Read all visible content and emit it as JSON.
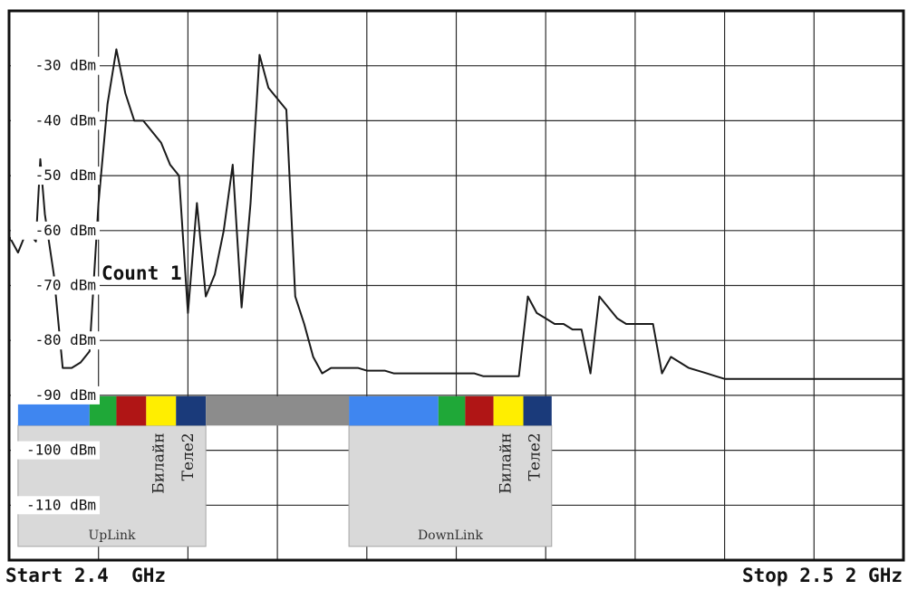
{
  "chart_data": {
    "type": "line",
    "y_tick_labels": [
      "-30 dBm",
      "-40 dBm",
      "-50 dBm",
      "-60 dBm",
      "-70 dBm",
      "-80 dBm",
      "-90 dBm",
      "-100 dBm",
      "-110 dBm"
    ],
    "y_tick_values": [
      -30,
      -40,
      -50,
      -60,
      -70,
      -80,
      -90,
      -100,
      -110
    ],
    "ylim": [
      -120,
      -20
    ],
    "xlim": [
      2.4,
      2.52
    ],
    "x_unit": "GHz",
    "start_label": "Start 2.4  GHz",
    "stop_label": "Stop 2.5 2 GHz",
    "annotation": "Count  1",
    "grid": true,
    "series": [
      {
        "color": "#1a1a1a",
        "x": [
          2.4,
          2.4012,
          2.4024,
          2.4036,
          2.4042,
          2.4048,
          2.406,
          2.4072,
          2.408,
          2.4084,
          2.4096,
          2.4108,
          2.412,
          2.4132,
          2.4144,
          2.4156,
          2.4168,
          2.418,
          2.4192,
          2.4204,
          2.4216,
          2.4228,
          2.424,
          2.4252,
          2.4264,
          2.4276,
          2.4288,
          2.43,
          2.4312,
          2.4324,
          2.4336,
          2.4348,
          2.436,
          2.4372,
          2.4384,
          2.4396,
          2.4408,
          2.442,
          2.4432,
          2.4444,
          2.4456,
          2.4468,
          2.448,
          2.4492,
          2.4504,
          2.4516,
          2.4528,
          2.454,
          2.4552,
          2.4564,
          2.4576,
          2.4588,
          2.46,
          2.4612,
          2.4624,
          2.4636,
          2.4648,
          2.466,
          2.4672,
          2.4684,
          2.4696,
          2.4708,
          2.472,
          2.4732,
          2.4744,
          2.4756,
          2.4768,
          2.478,
          2.4792,
          2.4804,
          2.4816,
          2.4828,
          2.484,
          2.4852,
          2.4864,
          2.4876,
          2.4888,
          2.49,
          2.4912,
          2.4924,
          2.4936,
          2.4948,
          2.496,
          2.4972,
          2.4984,
          2.4996,
          2.5008,
          2.502,
          2.5032,
          2.5044,
          2.5056,
          2.5068,
          2.508,
          2.5092,
          2.5104,
          2.5116,
          2.5128,
          2.514,
          2.5152,
          2.5164,
          2.5176,
          2.5188,
          2.52
        ],
        "values": [
          -61,
          -64,
          -60,
          -62,
          -47,
          -57,
          -68,
          -85,
          -85,
          -85,
          -84,
          -82,
          -55,
          -37,
          -27,
          -35,
          -40,
          -40,
          -42,
          -44,
          -48,
          -50,
          -75,
          -55,
          -72,
          -68,
          -60,
          -48,
          -74,
          -55,
          -28,
          -34,
          -36,
          -38,
          -72,
          -77,
          -83,
          -86,
          -85,
          -85,
          -85,
          -85,
          -85.5,
          -85.5,
          -85.5,
          -86,
          -86,
          -86,
          -86,
          -86,
          -86,
          -86,
          -86,
          -86,
          -86,
          -86.5,
          -86.5,
          -86.5,
          -86.5,
          -86.5,
          -72,
          -75,
          -76,
          -77,
          -77,
          -78,
          -78,
          -86,
          -72,
          -74,
          -76,
          -77,
          -77,
          -77,
          -77,
          -86,
          -83,
          -84,
          -85,
          -85.5,
          -86,
          -86.5,
          -87,
          -87,
          -87,
          -87,
          -87,
          -87,
          -87,
          -87,
          -87,
          -87,
          -87,
          -87,
          -87,
          -87,
          -87,
          -87,
          -87,
          -87,
          -87,
          -87,
          -87
        ]
      }
    ]
  },
  "bands": {
    "uplink": {
      "caption": "UpLink",
      "segments": [
        {
          "x0": 2.4012,
          "x1": 2.4108,
          "color": "#3f86f0"
        },
        {
          "x0": 2.4108,
          "x1": 2.4144,
          "color": "#1fa838"
        },
        {
          "x0": 2.4144,
          "x1": 2.4184,
          "color": "#b01515"
        },
        {
          "x0": 2.4184,
          "x1": 2.4224,
          "color": "#ffee00"
        },
        {
          "x0": 2.4224,
          "x1": 2.4264,
          "color": "#1a3a7a"
        }
      ],
      "box": {
        "x0": 2.4012,
        "x1": 2.4264
      },
      "operators": [
        "Билайн",
        "Теле2"
      ]
    },
    "gap": {
      "x0": 2.4264,
      "x1": 2.4456,
      "color": "#8c8c8c"
    },
    "downlink": {
      "caption": "DownLink",
      "segments": [
        {
          "x0": 2.4456,
          "x1": 2.4576,
          "color": "#3f86f0"
        },
        {
          "x0": 2.4576,
          "x1": 2.4612,
          "color": "#1fa838"
        },
        {
          "x0": 2.4612,
          "x1": 2.465,
          "color": "#b01515"
        },
        {
          "x0": 2.465,
          "x1": 2.469,
          "color": "#ffee00"
        },
        {
          "x0": 2.469,
          "x1": 2.4728,
          "color": "#1a3a7a"
        }
      ],
      "box": {
        "x0": 2.4456,
        "x1": 2.4728
      },
      "operators": [
        "Билайн",
        "Теле2"
      ]
    }
  }
}
